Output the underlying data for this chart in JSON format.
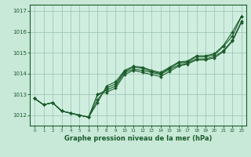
{
  "background_color": "#c8e8d8",
  "plot_bg_color": "#d0eee0",
  "grid_color": "#a0c8b8",
  "line_color": "#1a5c2a",
  "xlabel": "Graphe pression niveau de la mer (hPa)",
  "xlim": [
    -0.5,
    23.5
  ],
  "ylim": [
    1011.5,
    1017.3
  ],
  "yticks": [
    1012,
    1013,
    1014,
    1015,
    1016,
    1017
  ],
  "xticks": [
    0,
    1,
    2,
    3,
    4,
    5,
    6,
    7,
    8,
    9,
    10,
    11,
    12,
    13,
    14,
    15,
    16,
    17,
    18,
    19,
    20,
    21,
    22,
    23
  ],
  "series": [
    [
      1012.8,
      1012.5,
      1012.6,
      1012.2,
      1012.1,
      1012.0,
      1011.9,
      1012.75,
      1013.3,
      1013.5,
      1014.1,
      1014.3,
      1014.25,
      1014.1,
      1014.0,
      1014.25,
      1014.5,
      1014.55,
      1014.8,
      1014.8,
      1014.9,
      1015.3,
      1015.8,
      1016.75
    ],
    [
      1012.8,
      1012.5,
      1012.6,
      1012.2,
      1012.1,
      1012.0,
      1011.9,
      1013.0,
      1013.2,
      1013.4,
      1014.05,
      1014.2,
      1014.15,
      1014.05,
      1013.95,
      1014.2,
      1014.4,
      1014.5,
      1014.7,
      1014.7,
      1014.82,
      1015.1,
      1015.6,
      1016.5
    ],
    [
      1012.8,
      1012.5,
      1012.6,
      1012.2,
      1012.1,
      1012.0,
      1011.9,
      1013.0,
      1013.1,
      1013.3,
      1013.95,
      1014.15,
      1014.05,
      1013.95,
      1013.85,
      1014.1,
      1014.35,
      1014.45,
      1014.65,
      1014.65,
      1014.75,
      1015.05,
      1015.55,
      1016.45
    ]
  ]
}
